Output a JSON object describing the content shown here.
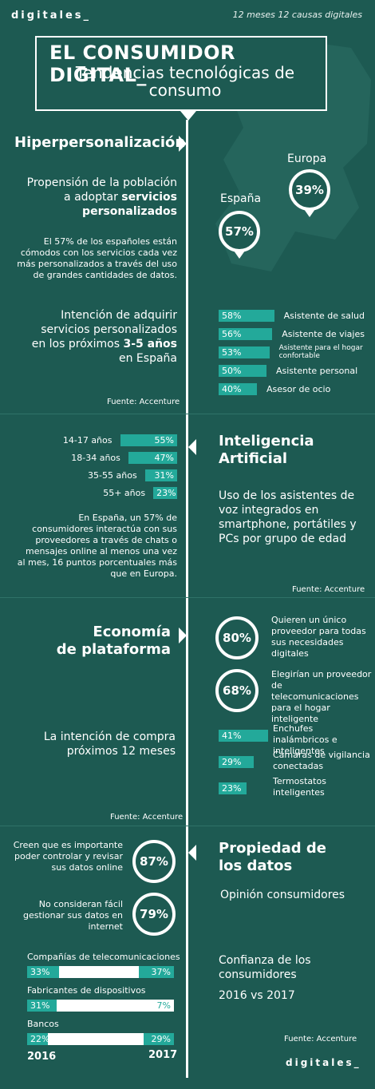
{
  "header": {
    "brand": "digitales_",
    "tagline": "12 meses 12 causas digitales"
  },
  "title": {
    "main": "EL CONSUMIDOR DIGITAL_",
    "sub": "Tendencias tecnológicas de consumo"
  },
  "s1": {
    "title": "Hiperpersonalización",
    "prop_line1": "Propensión de la población",
    "prop_line2": "a adoptar",
    "prop_bold": "servicios personalizados",
    "europa_label": "Europa",
    "europa_pct": "39%",
    "espana_label": "España",
    "espana_pct": "57%",
    "para": "El 57% de los españoles están cómodos con los servicios cada vez más personalizados a través del uso de grandes cantidades de datos.",
    "intent1": "Intención de adquirir servicios personalizados en los próximos",
    "intent_bold": "3-5 años",
    "intent2": "en España",
    "bars": [
      {
        "pct": "58%",
        "label": "Asistente de salud",
        "v": 58
      },
      {
        "pct": "56%",
        "label": "Asistente de viajes",
        "v": 56
      },
      {
        "pct": "53%",
        "label": "Asistente para el hogar confortable",
        "v": 53
      },
      {
        "pct": "50%",
        "label": "Asistente personal",
        "v": 50
      },
      {
        "pct": "40%",
        "label": "Asesor de ocio",
        "v": 40
      }
    ],
    "source": "Fuente: Accenture"
  },
  "s2": {
    "title1": "Inteligencia",
    "title2": "Artificial",
    "ages": [
      {
        "label": "14-17 años",
        "pct": "55%",
        "v": 55
      },
      {
        "label": "18-34 años",
        "pct": "47%",
        "v": 47
      },
      {
        "label": "35-55 años",
        "pct": "31%",
        "v": 31
      },
      {
        "label": "55+ años",
        "pct": "23%",
        "v": 23
      }
    ],
    "desc": "Uso de los asistentes de voz integrados en smartphone, portátiles y PCs por grupo de edad",
    "para": "En España, un 57% de consumidores interactúa con sus proveedores a través de chats o mensajes online al menos una vez al mes, 16 puntos porcentuales más que en Europa.",
    "source": "Fuente: Accenture"
  },
  "s3": {
    "title1": "Economía",
    "title2": "de plataforma",
    "r1_pct": "80%",
    "r1_text": "Quieren un único proveedor para todas sus necesidades digitales",
    "r2_pct": "68%",
    "r2_text": "Elegirían un proveedor de telecomunicaciones para el hogar inteligente",
    "intent": "La intención de compra próximos 12 meses",
    "bars": [
      {
        "pct": "41%",
        "label": "Enchufes inalámbricos e inteligentes",
        "v": 41
      },
      {
        "pct": "29%",
        "label": "Cámaras de vigilancia conectadas",
        "v": 29
      },
      {
        "pct": "23%",
        "label": "Termostatos inteligentes",
        "v": 23
      }
    ],
    "source": "Fuente: Accenture"
  },
  "s4": {
    "title1": "Propiedad de",
    "title2": "los datos",
    "opinion": "Opinión consumidores",
    "r1_text": "Creen que es importante poder controlar y revisar sus datos online",
    "r1_pct": "87%",
    "r2_text": "No consideran fácil gestionar sus datos en internet",
    "r2_pct": "79%",
    "confianza": "Confianza de los consumidores",
    "years_title": "2016 vs 2017",
    "rows": [
      {
        "label": "Compañías de telecomunicaciones",
        "a": "33%",
        "b": "37%",
        "va": 33,
        "vb": 37
      },
      {
        "label": "Fabricantes de dispositivos",
        "a": "31%",
        "b": "7%",
        "va": 31,
        "vb": 7
      },
      {
        "label": "Bancos",
        "a": "22%",
        "b": "29%",
        "va": 22,
        "vb": 29
      }
    ],
    "year_a": "2016",
    "year_b": "2017",
    "source": "Fuente: Accenture",
    "footer_brand": "digitales_"
  },
  "colors": {
    "bg": "#1d5a52",
    "accent": "#23a99a",
    "white": "#ffffff"
  }
}
